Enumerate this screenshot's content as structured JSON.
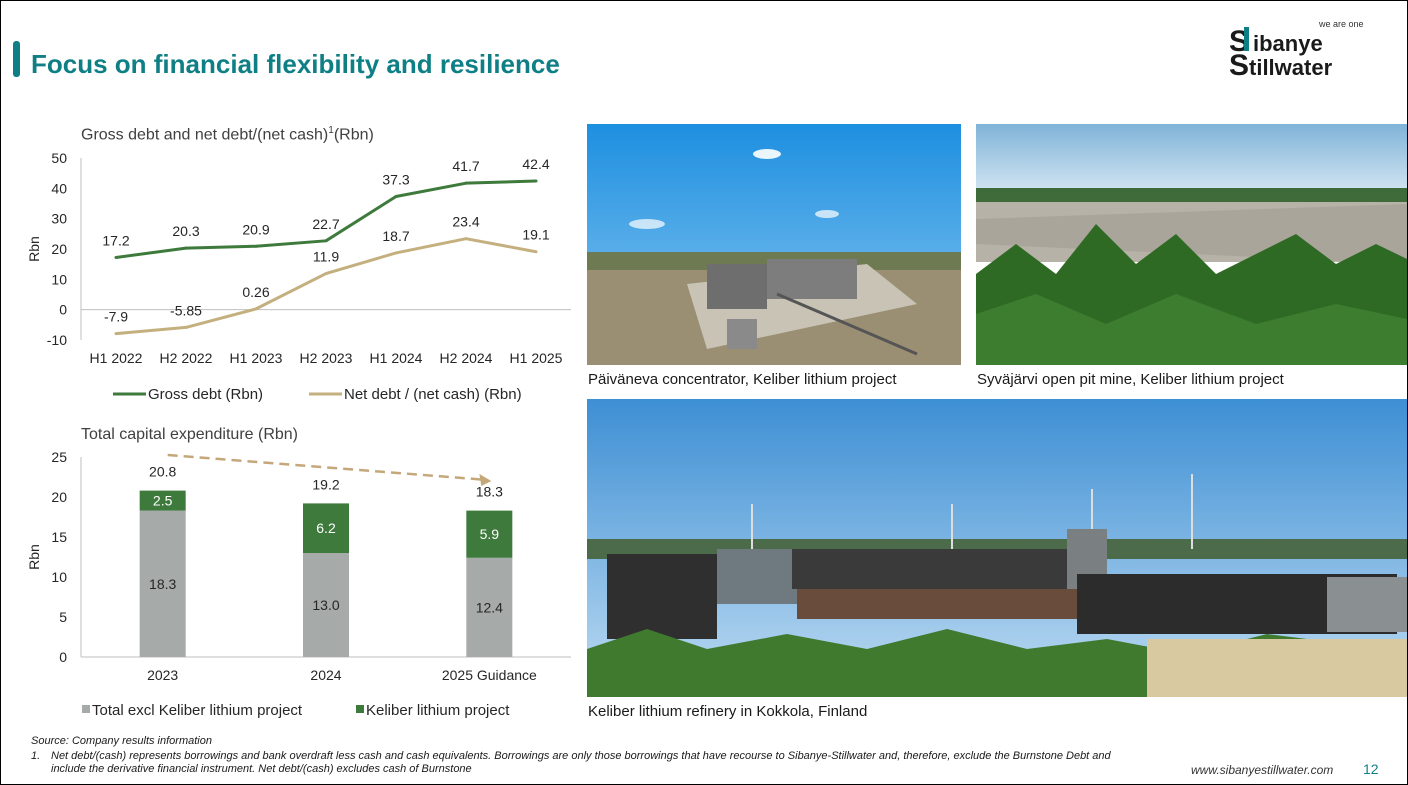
{
  "slide": {
    "title": "Focus on financial flexibility and resilience",
    "website": "www.sibanyestillwater.com",
    "page_number": "12"
  },
  "logo": {
    "tagline": "we are one",
    "name_line1": "Sibanye",
    "name_line2": "Stillwater"
  },
  "line_chart": {
    "title": "Gross debt and net debt/(net cash)",
    "title_sup": "1",
    "title_unit": "(Rbn)"
  },
  "bar_chart": {
    "title": "Total capital expenditure (Rbn)"
  },
  "chart_data": [
    {
      "type": "line",
      "categories": [
        "H1 2022",
        "H2 2022",
        "H1 2023",
        "H2 2023",
        "H1 2024",
        "H2 2024",
        "H1 2025"
      ],
      "series": [
        {
          "name": "Gross debt (Rbn)",
          "values": [
            17.2,
            20.3,
            20.9,
            22.7,
            37.3,
            41.7,
            42.4
          ],
          "labels": [
            "17.2",
            "20.3",
            "20.9",
            "22.7",
            "37.3",
            "41.7",
            "42.4"
          ],
          "color": "#3e7a3c"
        },
        {
          "name": "Net debt / (net cash) (Rbn)",
          "values": [
            -7.9,
            -5.85,
            0.26,
            11.9,
            18.7,
            23.4,
            19.1
          ],
          "labels": [
            "-7.9",
            "-5.85",
            "0.26",
            "11.9",
            "18.7",
            "23.4",
            "19.1"
          ],
          "color": "#c4b07e"
        }
      ],
      "ylabel": "Rbn",
      "ylim": [
        -10,
        50
      ],
      "yticks": [
        "-10",
        "0",
        "10",
        "20",
        "30",
        "40",
        "50"
      ],
      "grid": false,
      "legend": "bottom"
    },
    {
      "type": "bar",
      "stacked": true,
      "categories": [
        "2023",
        "2024",
        "2025 Guidance"
      ],
      "series": [
        {
          "name": "Total excl Keliber lithium project",
          "values": [
            18.3,
            13.0,
            12.4
          ],
          "labels": [
            "18.3",
            "13.0",
            "12.4"
          ],
          "color": "#a6aaa8"
        },
        {
          "name": "Keliber lithium project",
          "values": [
            2.5,
            6.2,
            5.9
          ],
          "labels": [
            "2.5",
            "6.2",
            "5.9"
          ],
          "color": "#3e7a3c"
        }
      ],
      "totals": [
        "20.8",
        "19.2",
        "18.3"
      ],
      "ylabel": "Rbn",
      "ylim": [
        0,
        25
      ],
      "yticks": [
        "0",
        "5",
        "10",
        "15",
        "20",
        "25"
      ],
      "trend_arrow": {
        "color": "#c4a87a",
        "style": "dashed"
      },
      "grid": false,
      "legend": "bottom"
    }
  ],
  "photos": [
    {
      "caption": "Päiväneva concentrator, Keliber lithium project"
    },
    {
      "caption": "Syväjärvi open pit mine, Keliber lithium project"
    },
    {
      "caption": "Keliber lithium refinery in Kokkola, Finland"
    }
  ],
  "footnotes": {
    "source": "Source: Company results information",
    "note_number": "1.",
    "note_text": "Net debt/(cash) represents borrowings and bank overdraft less cash and cash equivalents. Borrowings are only those borrowings that have recourse to Sibanye-Stillwater and, therefore, exclude the Burnstone Debt and include the derivative financial instrument. Net debt/(cash) excludes cash of Burnstone"
  }
}
